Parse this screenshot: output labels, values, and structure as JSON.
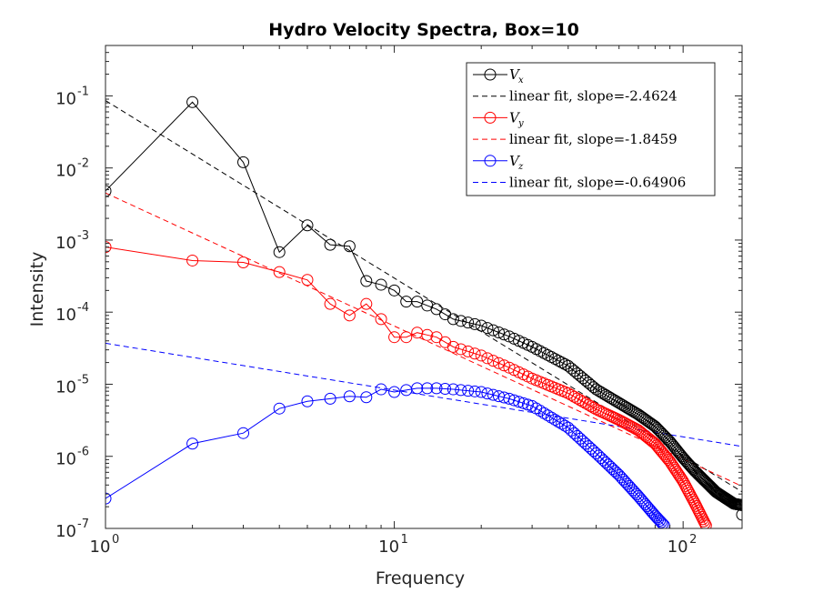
{
  "chart_data": {
    "type": "line",
    "title": "Hydro Velocity Spectra, Box=10",
    "xlabel": "Frequency",
    "ylabel": "Intensity",
    "xscale": "log",
    "yscale": "log",
    "xlim": [
      1,
      160
    ],
    "ylim": [
      1e-07,
      0.5
    ],
    "xticks": [
      {
        "base": "10",
        "exp": "0",
        "value": 1
      },
      {
        "base": "10",
        "exp": "1",
        "value": 10
      },
      {
        "base": "10",
        "exp": "2",
        "value": 100
      }
    ],
    "yticks": [
      {
        "base": "10",
        "exp": "-7",
        "value": 1e-07
      },
      {
        "base": "10",
        "exp": "-6",
        "value": 1e-06
      },
      {
        "base": "10",
        "exp": "-5",
        "value": 1e-05
      },
      {
        "base": "10",
        "exp": "-4",
        "value": 0.0001
      },
      {
        "base": "10",
        "exp": "-3",
        "value": 0.001
      },
      {
        "base": "10",
        "exp": "-2",
        "value": 0.01
      },
      {
        "base": "10",
        "exp": "-1",
        "value": 0.1
      }
    ],
    "grid": false,
    "legend_position": "top-right",
    "series": [
      {
        "name_sym": "V",
        "name_sub": "x",
        "color": "#000000",
        "marker": "circle",
        "anchors": [
          [
            1,
            0.0048
          ],
          [
            2,
            0.082
          ],
          [
            3,
            0.012
          ],
          [
            4,
            0.00068
          ],
          [
            5,
            0.0016
          ],
          [
            6,
            0.00086
          ],
          [
            7,
            0.00082
          ],
          [
            8,
            0.00027
          ],
          [
            9,
            0.00024
          ],
          [
            10,
            0.0002
          ],
          [
            11,
            0.00014
          ],
          [
            12,
            0.00014
          ],
          [
            14,
            0.00011
          ],
          [
            16,
            8e-05
          ],
          [
            20,
            6.5e-05
          ],
          [
            25,
            4.6e-05
          ],
          [
            30,
            3.3e-05
          ],
          [
            40,
            1.8e-05
          ],
          [
            50,
            8.5e-06
          ],
          [
            60,
            5.5e-06
          ],
          [
            70,
            3.8e-06
          ],
          [
            80,
            2.6e-06
          ],
          [
            90,
            1.6e-06
          ],
          [
            100,
            9.5e-07
          ],
          [
            110,
            6.2e-07
          ],
          [
            130,
            3.2e-07
          ],
          [
            150,
            2.2e-07
          ],
          [
            160,
            2.1e-07
          ]
        ],
        "endpoint": [
          160,
          1.55e-07
        ]
      },
      {
        "name_sym": "V",
        "name_sub": "y",
        "color": "#ff0000",
        "marker": "circle",
        "anchors": [
          [
            1,
            0.0008
          ],
          [
            2,
            0.00052
          ],
          [
            3,
            0.00049
          ],
          [
            4,
            0.00036
          ],
          [
            5,
            0.00028
          ],
          [
            6,
            0.00013
          ],
          [
            7,
            9e-05
          ],
          [
            8,
            0.00013
          ],
          [
            9,
            8e-05
          ],
          [
            10,
            4.5e-05
          ],
          [
            11,
            4.5e-05
          ],
          [
            12,
            5.2e-05
          ],
          [
            14,
            4.5e-05
          ],
          [
            16,
            3.3e-05
          ],
          [
            20,
            2.5e-05
          ],
          [
            25,
            1.7e-05
          ],
          [
            30,
            1.2e-05
          ],
          [
            40,
            7.5e-06
          ],
          [
            50,
            4.5e-06
          ],
          [
            60,
            3.2e-06
          ],
          [
            70,
            2.3e-06
          ],
          [
            80,
            1.5e-06
          ],
          [
            90,
            8.5e-07
          ],
          [
            100,
            4.5e-07
          ],
          [
            110,
            2.2e-07
          ],
          [
            120,
            1.1e-07
          ]
        ]
      },
      {
        "name_sym": "V",
        "name_sub": "z",
        "color": "#0000ff",
        "marker": "circle",
        "anchors": [
          [
            1,
            2.6e-07
          ],
          [
            2,
            1.5e-06
          ],
          [
            3,
            2.1e-06
          ],
          [
            4,
            4.6e-06
          ],
          [
            5,
            5.8e-06
          ],
          [
            6,
            6.3e-06
          ],
          [
            7,
            6.8e-06
          ],
          [
            8,
            6.6e-06
          ],
          [
            9,
            8.5e-06
          ],
          [
            10,
            7.8e-06
          ],
          [
            12,
            8.8e-06
          ],
          [
            14,
            8.8e-06
          ],
          [
            16,
            8.5e-06
          ],
          [
            20,
            7.8e-06
          ],
          [
            25,
            6.3e-06
          ],
          [
            30,
            5e-06
          ],
          [
            40,
            2.5e-06
          ],
          [
            50,
            1.1e-06
          ],
          [
            60,
            5.5e-07
          ],
          [
            70,
            2.8e-07
          ],
          [
            80,
            1.5e-07
          ],
          [
            86,
            1.1e-07
          ]
        ]
      }
    ],
    "fits": [
      {
        "label": "linear fit, slope=-2.4624",
        "color": "#000000",
        "a": 0.086,
        "slope": -2.4624
      },
      {
        "label": "linear fit, slope=-1.8459",
        "color": "#ff0000",
        "a": 0.0045,
        "slope": -1.8459
      },
      {
        "label": "linear fit, slope=-0.64906",
        "color": "#0000ff",
        "a": 3.7e-05,
        "slope": -0.64906
      }
    ]
  }
}
